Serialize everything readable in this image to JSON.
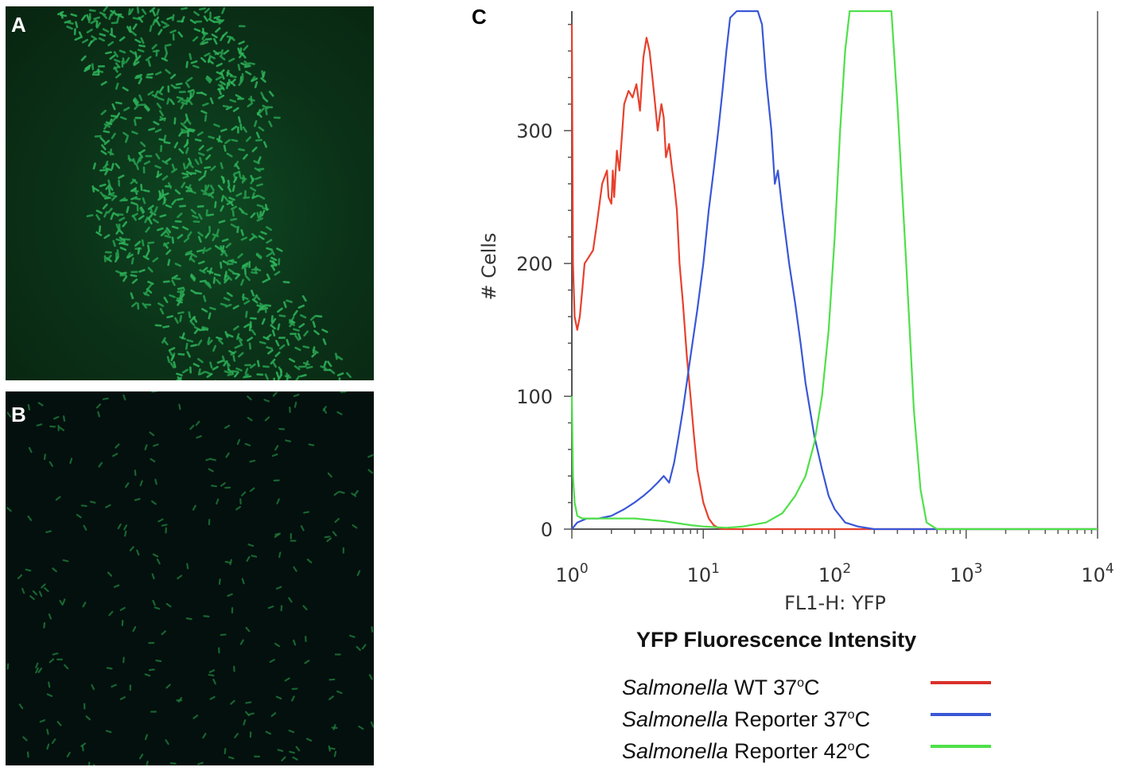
{
  "panels": {
    "a": {
      "letter": "A"
    },
    "b": {
      "letter": "B"
    },
    "c": {
      "letter": "C"
    }
  },
  "chart_data": {
    "type": "line",
    "title": "YFP Fluorescence Intensity",
    "xlabel": "FL1-H: YFP",
    "ylabel": "# Cells",
    "x_scale": "log",
    "xlim": [
      1,
      10000
    ],
    "ylim": [
      0,
      390
    ],
    "x_ticks": [
      {
        "base": "10",
        "exp": "0",
        "value": 1
      },
      {
        "base": "10",
        "exp": "1",
        "value": 10
      },
      {
        "base": "10",
        "exp": "2",
        "value": 100
      },
      {
        "base": "10",
        "exp": "3",
        "value": 1000
      },
      {
        "base": "10",
        "exp": "4",
        "value": 10000
      }
    ],
    "y_ticks": [
      0,
      100,
      200,
      300
    ],
    "legend_position": "bottom",
    "series": [
      {
        "name": "WT 37",
        "label_italic": "Salmonella",
        "label_rest": " WT 37",
        "label_sup": "o",
        "label_end": "C",
        "color": "#e8402c",
        "x": [
          1.0,
          1.02,
          1.05,
          1.1,
          1.15,
          1.2,
          1.25,
          1.35,
          1.45,
          1.55,
          1.7,
          1.85,
          1.9,
          2.0,
          2.05,
          2.1,
          2.2,
          2.3,
          2.5,
          2.7,
          2.9,
          3.1,
          3.3,
          3.5,
          3.7,
          3.9,
          4.1,
          4.3,
          4.5,
          4.8,
          5.0,
          5.2,
          5.5,
          5.8,
          6.0,
          6.3,
          6.6,
          7.0,
          7.5,
          8.0,
          8.5,
          9.0,
          10,
          11,
          12,
          13,
          14,
          16,
          20,
          30,
          100,
          10000
        ],
        "values": [
          380,
          200,
          160,
          150,
          160,
          180,
          200,
          205,
          210,
          230,
          260,
          270,
          250,
          245,
          270,
          250,
          285,
          270,
          320,
          330,
          325,
          335,
          315,
          355,
          370,
          360,
          340,
          320,
          300,
          320,
          310,
          280,
          290,
          270,
          260,
          240,
          200,
          170,
          130,
          100,
          70,
          45,
          20,
          8,
          3,
          1,
          0,
          0,
          0,
          0,
          0,
          0
        ]
      },
      {
        "name": "Reporter 37",
        "label_italic": "Salmonella",
        "label_rest": " Reporter 37",
        "label_sup": "o",
        "label_end": "C",
        "color": "#3a57d6",
        "x": [
          1.0,
          1.1,
          1.3,
          1.6,
          2.0,
          2.5,
          3.0,
          3.5,
          4.0,
          4.5,
          5.0,
          5.5,
          6.0,
          6.5,
          7.0,
          8.0,
          9.0,
          10,
          11,
          12,
          13,
          14,
          15,
          16,
          18,
          22,
          26,
          28,
          30,
          33,
          35,
          37,
          40,
          45,
          50,
          55,
          60,
          70,
          80,
          90,
          100,
          120,
          150,
          200,
          300,
          10000
        ],
        "values": [
          0,
          5,
          8,
          8,
          10,
          15,
          20,
          25,
          30,
          35,
          40,
          35,
          50,
          70,
          90,
          130,
          165,
          200,
          240,
          270,
          300,
          330,
          360,
          385,
          390,
          390,
          390,
          380,
          340,
          300,
          260,
          270,
          240,
          200,
          170,
          140,
          110,
          70,
          45,
          25,
          15,
          5,
          2,
          0,
          0,
          0
        ]
      },
      {
        "name": "Reporter 42",
        "label_italic": "Salmonella",
        "label_rest": " Reporter 42",
        "label_sup": "o",
        "label_end": "C",
        "color": "#4fe04a",
        "x": [
          1.0,
          1.02,
          1.05,
          1.1,
          1.2,
          1.5,
          2.0,
          3.0,
          5.0,
          8.0,
          10,
          15,
          20,
          30,
          40,
          50,
          60,
          70,
          80,
          90,
          100,
          110,
          120,
          130,
          140,
          200,
          270,
          300,
          350,
          400,
          450,
          500,
          600,
          1000,
          10000
        ],
        "values": [
          100,
          40,
          20,
          10,
          8,
          8,
          8,
          8,
          6,
          3,
          2,
          1,
          2,
          5,
          12,
          25,
          40,
          65,
          100,
          150,
          220,
          300,
          360,
          390,
          390,
          390,
          390,
          320,
          200,
          90,
          30,
          5,
          0,
          0,
          0
        ]
      }
    ]
  }
}
